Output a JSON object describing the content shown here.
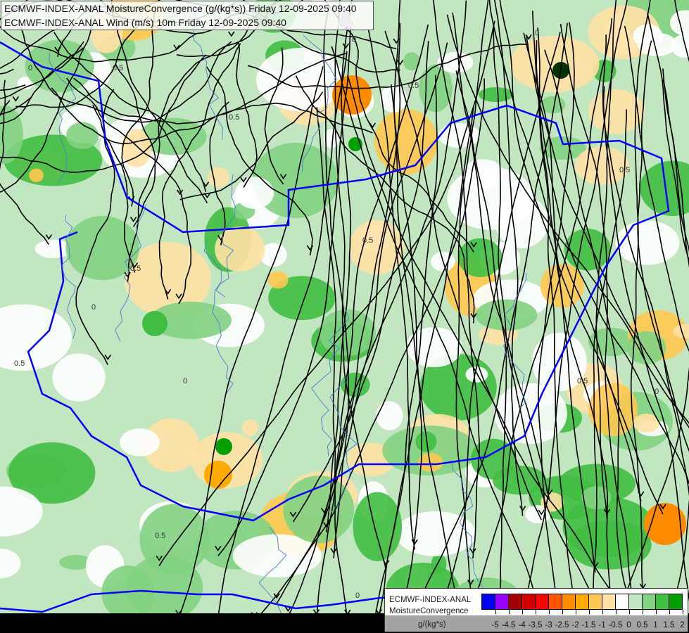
{
  "header": {
    "line1": "ECMWF-INDEX-ANAL MoistureConvergence (g/(kg*s)) Friday 12-09-2025 09:40",
    "line2": "ECMWF-INDEX-ANAL Wind (m/s) 10m Friday 12-09-2025 09:40"
  },
  "map": {
    "background_color": "#c2e6c0",
    "border_color": "#0000ff",
    "river_color": "#4a7bd0",
    "streamline_color": "#000000",
    "contour_labels": [
      "0",
      "0.5",
      "0.5",
      "0",
      "0.5",
      "0",
      "0.5",
      "0.5",
      "0",
      "0.5",
      "0",
      "0.5",
      "0",
      "0.5",
      "0",
      "0.5"
    ]
  },
  "legend": {
    "title_line1": "ECMWF-INDEX-ANAL",
    "title_line2": "MoistureConvergence",
    "unit": "g/(kg*s)",
    "colors": [
      "#0000ff",
      "#9900ff",
      "#a50000",
      "#d20000",
      "#ff0000",
      "#ff5500",
      "#ff8c00",
      "#ffaa00",
      "#ffc850",
      "#ffe1a5",
      "#ffffff",
      "#c3e6c3",
      "#82d282",
      "#41be41",
      "#00a000"
    ],
    "tick_labels": [
      "-5",
      "-4.5",
      "-4",
      "-3.5",
      "-3",
      "-2.5",
      "-2",
      "-1.5",
      "-1",
      "-0.5",
      "0",
      "0.5",
      "1",
      "1.5",
      "2"
    ]
  }
}
